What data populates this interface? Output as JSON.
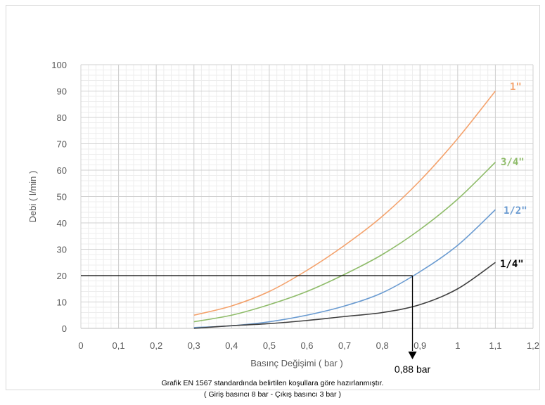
{
  "chart_data": {
    "type": "line",
    "xlabel": "Basınç Değişimi ( bar )",
    "ylabel": "Debi ( l/min )",
    "xlim": [
      0,
      1.2
    ],
    "ylim": [
      0,
      100
    ],
    "x_ticks": [
      "0",
      "0,1",
      "0,2",
      "0,3",
      "0,4",
      "0,5",
      "0,6",
      "0,7",
      "0,8",
      "0,9",
      "1",
      "1,1",
      "1,2"
    ],
    "y_ticks": [
      "0",
      "10",
      "20",
      "30",
      "40",
      "50",
      "60",
      "70",
      "80",
      "90",
      "100"
    ],
    "grid": true,
    "x": [
      0.3,
      0.4,
      0.5,
      0.6,
      0.7,
      0.8,
      0.9,
      1.0,
      1.1
    ],
    "series": [
      {
        "name": "1\"",
        "color": "#f4a26c",
        "values": [
          5,
          8.5,
          14,
          22,
          31.5,
          42.5,
          56,
          72,
          90
        ]
      },
      {
        "name": "3/4\"",
        "color": "#8fbc6a",
        "values": [
          2.5,
          5,
          9,
          14,
          20.5,
          28,
          37.5,
          49,
          63
        ]
      },
      {
        "name": "1/2\"",
        "color": "#6a9bd1",
        "values": [
          0.3,
          1,
          2.5,
          5,
          8.5,
          13.5,
          21.5,
          31.5,
          45
        ]
      },
      {
        "name": "1/4\"",
        "color": "#404040",
        "values": [
          0,
          1,
          1.8,
          3,
          4.5,
          6,
          9,
          15,
          25
        ]
      }
    ],
    "annotation": {
      "x": 0.88,
      "y": 20,
      "label": "0,88 bar"
    }
  },
  "caption": {
    "line1": "Grafik EN 1567 standardında belirtilen koşullara göre hazırlanmıştır.",
    "line2": "( Giriş basıncı 8 bar - Çıkış basıncı 3 bar )"
  }
}
